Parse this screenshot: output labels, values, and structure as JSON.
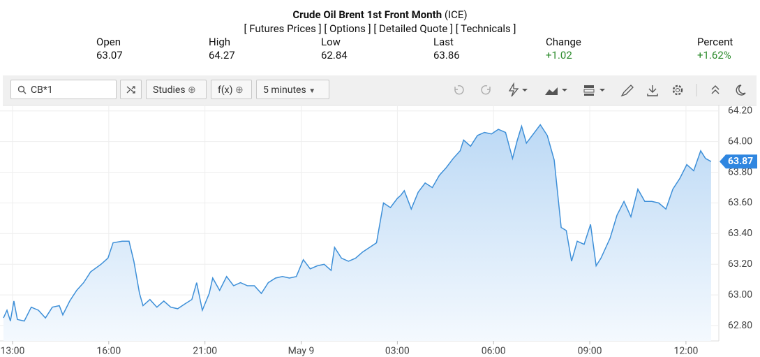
{
  "header": {
    "title": "Crude Oil Brent 1st Front Month",
    "exchange": "(ICE)",
    "links": [
      "[ Futures Prices ]",
      "[ Options ]",
      "[ Detailed Quote ]",
      "[ Technicals ]"
    ]
  },
  "quote": [
    {
      "label": "Open",
      "value": "63.07"
    },
    {
      "label": "High",
      "value": "64.27"
    },
    {
      "label": "Low",
      "value": "62.84"
    },
    {
      "label": "Last",
      "value": "63.86"
    },
    {
      "label": "Change",
      "value": "+1.02"
    },
    {
      "label": "Percent",
      "value": "+1.62%"
    }
  ],
  "toolbar": {
    "symbol": "CB*1",
    "studies": "Studies",
    "fx": "f(x)",
    "interval": "5 minutes"
  },
  "chart_data": {
    "type": "area",
    "color": "#3d8fd8",
    "grid": true,
    "last_value": 63.87,
    "xlim": [
      -4.7,
      264.3
    ],
    "ylim": [
      62.7,
      64.24
    ],
    "xticks": [
      {
        "value": 0,
        "label": "13:00"
      },
      {
        "value": 36,
        "label": "16:00"
      },
      {
        "value": 72,
        "label": "21:00"
      },
      {
        "value": 108,
        "label": "May 9"
      },
      {
        "value": 144,
        "label": "03:00"
      },
      {
        "value": 180,
        "label": "06:00"
      },
      {
        "value": 216,
        "label": "09:00"
      },
      {
        "value": 252,
        "label": "12:00"
      }
    ],
    "yticks": [
      {
        "value": 62.8,
        "label": "62.80"
      },
      {
        "value": 63,
        "label": "63.00"
      },
      {
        "value": 63.2,
        "label": "63.20"
      },
      {
        "value": 63.4,
        "label": "63.40"
      },
      {
        "value": 63.6,
        "label": "63.60"
      },
      {
        "value": 63.8,
        "label": "63.80"
      },
      {
        "value": 64,
        "label": "64.00"
      },
      {
        "value": 64.2,
        "label": "64.20"
      }
    ],
    "x": [
      -3.4,
      -2.1,
      -0.8,
      0.5,
      1.8,
      4.4,
      7.0,
      9.7,
      12.3,
      14.9,
      17.5,
      18.8,
      21.4,
      24.0,
      26.6,
      29.2,
      33.1,
      35.7,
      37.6,
      41.0,
      43.6,
      45.4,
      47.5,
      48.8,
      51.4,
      54.0,
      56.6,
      59.2,
      61.8,
      64.4,
      67.1,
      68.9,
      71.0,
      73.6,
      74.9,
      77.5,
      80.1,
      82.7,
      85.3,
      87.9,
      90.5,
      93.1,
      95.7,
      98.4,
      101.0,
      103.6,
      106.2,
      108.8,
      111.4,
      114.0,
      116.6,
      119.2,
      120.5,
      123.1,
      125.7,
      128.4,
      131.0,
      133.6,
      136.2,
      138.8,
      141.4,
      144.0,
      145.3,
      146.6,
      149.2,
      151.8,
      154.4,
      157.1,
      159.7,
      162.3,
      164.9,
      167.5,
      168.8,
      171.4,
      174.0,
      176.6,
      179.2,
      181.8,
      184.5,
      187.1,
      188.9,
      190.5,
      192.3,
      194.9,
      197.5,
      200.1,
      202.7,
      205.3,
      207.2,
      209.2,
      211.3,
      213.9,
      216.3,
      218.4,
      220.2,
      223.6,
      226.2,
      228.8,
      231.4,
      234.0,
      236.6,
      239.2,
      241.8,
      244.5,
      247.1,
      249.7,
      252.3,
      254.9,
      257.5,
      259.3,
      261.4
    ],
    "values": [
      62.85,
      62.9,
      62.83,
      62.96,
      62.84,
      62.83,
      62.92,
      62.9,
      62.85,
      62.92,
      62.93,
      62.87,
      62.96,
      63.03,
      63.08,
      63.15,
      63.2,
      63.24,
      63.34,
      63.35,
      63.35,
      63.22,
      63.01,
      62.93,
      62.97,
      62.92,
      62.96,
      62.92,
      62.91,
      62.94,
      62.97,
      63.08,
      62.9,
      63.01,
      63.11,
      63.03,
      63.12,
      63.06,
      63.08,
      63.06,
      63.06,
      63.01,
      63.08,
      63.11,
      63.12,
      63.11,
      63.12,
      63.23,
      63.17,
      63.19,
      63.2,
      63.16,
      63.31,
      63.24,
      63.22,
      63.24,
      63.28,
      63.31,
      63.34,
      63.6,
      63.57,
      63.63,
      63.65,
      63.68,
      63.56,
      63.67,
      63.73,
      63.7,
      63.78,
      63.83,
      63.89,
      63.94,
      64.01,
      63.97,
      64.04,
      64.06,
      64.05,
      64.08,
      64.06,
      63.89,
      64.01,
      64.1,
      63.99,
      64.05,
      64.11,
      64.04,
      63.88,
      63.44,
      63.42,
      63.22,
      63.35,
      63.33,
      63.46,
      63.19,
      63.24,
      63.37,
      63.52,
      63.61,
      63.51,
      63.69,
      63.61,
      63.61,
      63.6,
      63.56,
      63.69,
      63.76,
      63.85,
      63.81,
      63.94,
      63.89,
      63.87
    ]
  }
}
